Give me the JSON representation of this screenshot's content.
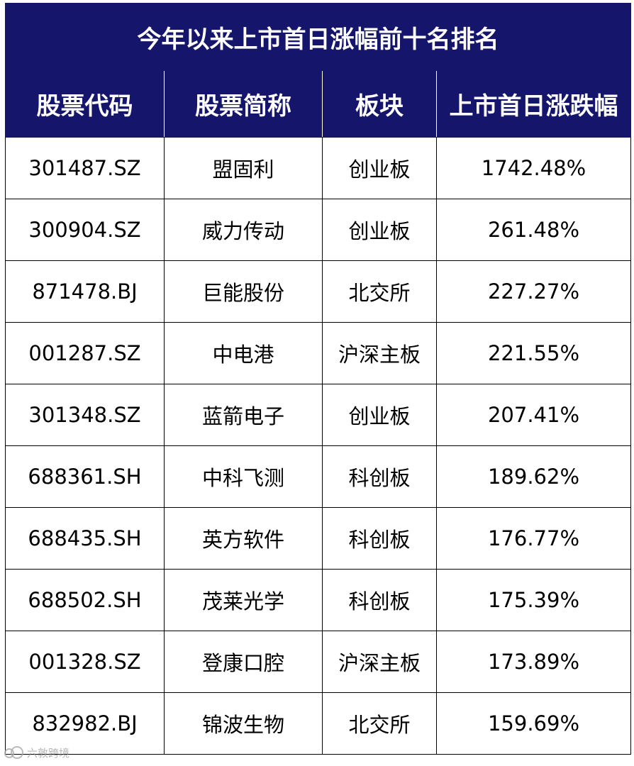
{
  "table": {
    "title": "今年以来上市首日涨幅前十名排名",
    "headers": [
      "股票代码",
      "股票简称",
      "板块",
      "上市首日涨跌幅"
    ],
    "rows": [
      [
        "301487.SZ",
        "盟固利",
        "创业板",
        "1742.48%"
      ],
      [
        "300904.SZ",
        "威力传动",
        "创业板",
        "261.48%"
      ],
      [
        "871478.BJ",
        "巨能股份",
        "北交所",
        "227.27%"
      ],
      [
        "001287.SZ",
        "中电港",
        "沪深主板",
        "221.55%"
      ],
      [
        "301348.SZ",
        "蓝箭电子",
        "创业板",
        "207.41%"
      ],
      [
        "688361.SH",
        "中科飞测",
        "科创板",
        "189.62%"
      ],
      [
        "688435.SH",
        "英方软件",
        "科创板",
        "176.77%"
      ],
      [
        "688502.SH",
        "茂莱光学",
        "科创板",
        "175.39%"
      ],
      [
        "001328.SZ",
        "登康口腔",
        "沪深主板",
        "173.89%"
      ],
      [
        "832982.BJ",
        "锦波生物",
        "北交所",
        "159.69%"
      ]
    ]
  },
  "colors": {
    "header_bg": "#15166b",
    "header_text": "#ffffff",
    "border": "#000000"
  },
  "watermark": {
    "text": "六敦跨境",
    "icon": "watermark-logo-icon"
  }
}
